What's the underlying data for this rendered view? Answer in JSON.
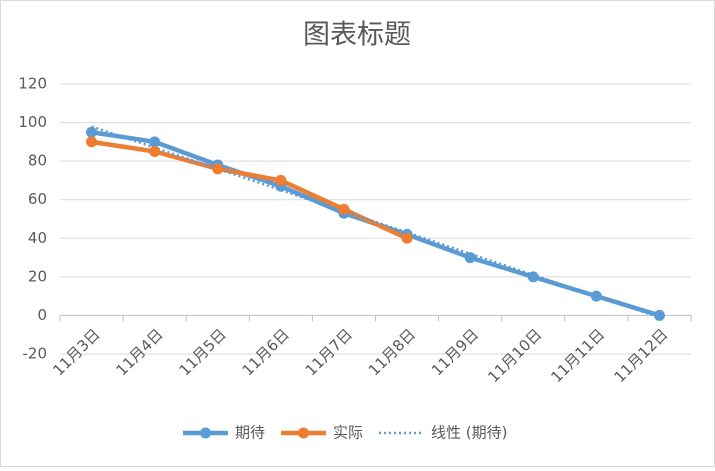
{
  "chart_data": {
    "type": "line",
    "title": "图表标题",
    "categories": [
      "11月3日",
      "11月4日",
      "11月5日",
      "11月6日",
      "11月7日",
      "11月8日",
      "11月9日",
      "11月10日",
      "11月11日",
      "11月12日"
    ],
    "series": [
      {
        "name": "期待",
        "color": "#5b9bd5",
        "values": [
          95,
          90,
          78,
          67,
          53,
          42,
          30,
          20,
          10,
          0
        ]
      },
      {
        "name": "实际",
        "color": "#ed7d31",
        "values": [
          90,
          85,
          76,
          70,
          55,
          40,
          null,
          null,
          null,
          null
        ]
      },
      {
        "name": "线性 (期待)",
        "color": "#5b9bd5",
        "dashed": true,
        "values": [
          98,
          87,
          76,
          65,
          54,
          43,
          32,
          21,
          10,
          -1
        ]
      }
    ],
    "ylim": [
      -20,
      120
    ],
    "yticks": [
      -20,
      0,
      20,
      40,
      60,
      80,
      100,
      120
    ],
    "grid": true,
    "legend": "bottom"
  }
}
